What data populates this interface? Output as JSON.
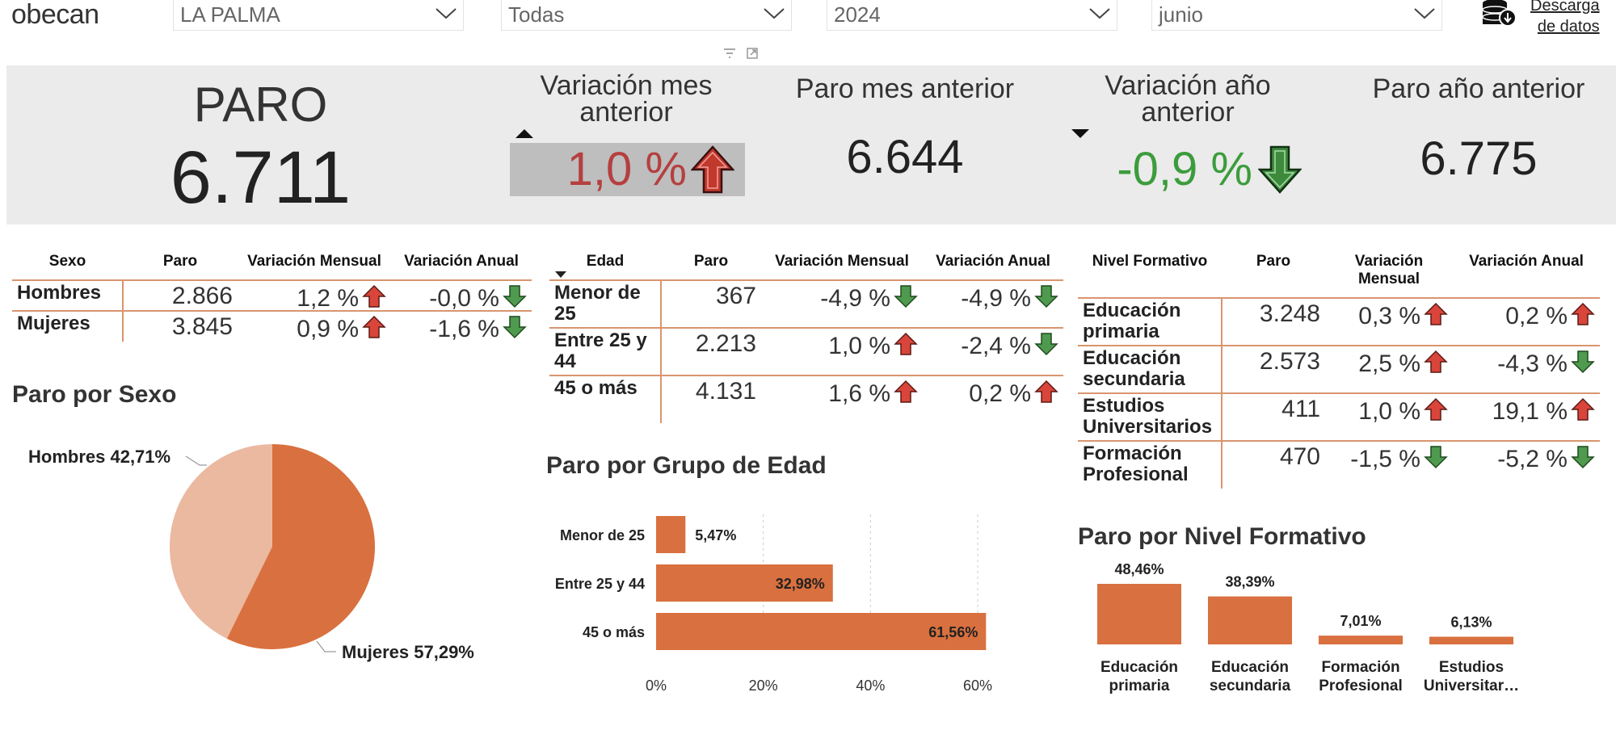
{
  "brand": {
    "logo": "obecan",
    "download_label_1": "Descarga",
    "download_label_2": "de datos"
  },
  "filters": [
    {
      "name": "filter-isla",
      "value": "LA PALMA"
    },
    {
      "name": "filter-municipio",
      "value": "Todas"
    },
    {
      "name": "filter-anio",
      "value": "2024"
    },
    {
      "name": "filter-mes",
      "value": "junio"
    }
  ],
  "kpi": {
    "paro_title": "PARO",
    "paro_value": "6.711",
    "var_mes_title_1": "Variación mes",
    "var_mes_title_2": "anterior",
    "var_mes_value": "1,0 %",
    "paro_mes_title": "Paro mes anterior",
    "paro_mes_value": "6.644",
    "var_anio_title_1": "Variación año",
    "var_anio_title_2": "anterior",
    "var_anio_value": "-0,9 %",
    "paro_anio_title": "Paro año anterior",
    "paro_anio_value": "6.775"
  },
  "colors": {
    "accent": "#d9703f",
    "accent_light": "#ebb8a0",
    "up": "#c0392b",
    "down": "#3d8a3d",
    "green_text": "#3c9c3c",
    "red_text": "#b5403f"
  },
  "sexo_table": {
    "headers": [
      "Sexo",
      "Paro",
      "Variación Mensual",
      "Variación Anual"
    ],
    "rows": [
      {
        "label": "Hombres",
        "paro": "2.866",
        "mensual": "1,2 %",
        "mensual_dir": "up",
        "anual": "-0,0 %",
        "anual_dir": "down"
      },
      {
        "label": "Mujeres",
        "paro": "3.845",
        "mensual": "0,9 %",
        "mensual_dir": "up",
        "anual": "-1,6 %",
        "anual_dir": "down"
      }
    ]
  },
  "edad_table": {
    "headers": [
      "Edad",
      "Paro",
      "Variación Mensual",
      "Variación Anual"
    ],
    "rows": [
      {
        "label": "Menor de 25",
        "paro": "367",
        "mensual": "-4,9 %",
        "mensual_dir": "down",
        "anual": "-4,9 %",
        "anual_dir": "down"
      },
      {
        "label": "Entre 25 y 44",
        "paro": "2.213",
        "mensual": "1,0 %",
        "mensual_dir": "up",
        "anual": "-2,4 %",
        "anual_dir": "down"
      },
      {
        "label": "45 o más",
        "paro": "4.131",
        "mensual": "1,6 %",
        "mensual_dir": "up",
        "anual": "0,2 %",
        "anual_dir": "up"
      }
    ]
  },
  "nivel_table": {
    "headers": [
      "Nivel Formativo",
      "Paro",
      "Variación Mensual",
      "Variación Anual"
    ],
    "rows": [
      {
        "label": "Educación primaria",
        "paro": "3.248",
        "mensual": "0,3 %",
        "mensual_dir": "up",
        "anual": "0,2 %",
        "anual_dir": "up"
      },
      {
        "label": "Educación secundaria",
        "paro": "2.573",
        "mensual": "2,5 %",
        "mensual_dir": "up",
        "anual": "-4,3 %",
        "anual_dir": "down"
      },
      {
        "label": "Estudios Universitarios",
        "paro": "411",
        "mensual": "1,0 %",
        "mensual_dir": "up",
        "anual": "19,1 %",
        "anual_dir": "up"
      },
      {
        "label": "Formación Profesional",
        "paro": "470",
        "mensual": "-1,5 %",
        "mensual_dir": "down",
        "anual": "-5,2 %",
        "anual_dir": "down"
      }
    ]
  },
  "sections": {
    "sexo": "Paro por Sexo",
    "edad": "Paro por Grupo de Edad",
    "nivel": "Paro por Nivel Formativo"
  },
  "chart_data": [
    {
      "type": "pie",
      "title": "Paro por Sexo",
      "categories": [
        "Hombres",
        "Mujeres"
      ],
      "values": [
        42.71,
        57.29
      ],
      "labels": [
        "Hombres 42,71%",
        "Mujeres 57,29%"
      ]
    },
    {
      "type": "bar",
      "orientation": "horizontal",
      "title": "Paro por Grupo de Edad",
      "categories": [
        "Menor de 25",
        "Entre 25 y 44",
        "45 o más"
      ],
      "values": [
        5.47,
        32.98,
        61.56
      ],
      "labels": [
        "5,47%",
        "32,98%",
        "61,56%"
      ],
      "xlim": [
        0,
        60
      ],
      "ticks": [
        "0%",
        "20%",
        "40%",
        "60%"
      ],
      "grid": true
    },
    {
      "type": "bar",
      "title": "Paro por Nivel Formativo",
      "categories": [
        "Educación primaria",
        "Educación secundaria",
        "Formación Profesional",
        "Estudios Universitar…"
      ],
      "values": [
        48.46,
        38.39,
        7.01,
        6.13
      ],
      "labels": [
        "48,46%",
        "38,39%",
        "7,01%",
        "6,13%"
      ]
    }
  ]
}
